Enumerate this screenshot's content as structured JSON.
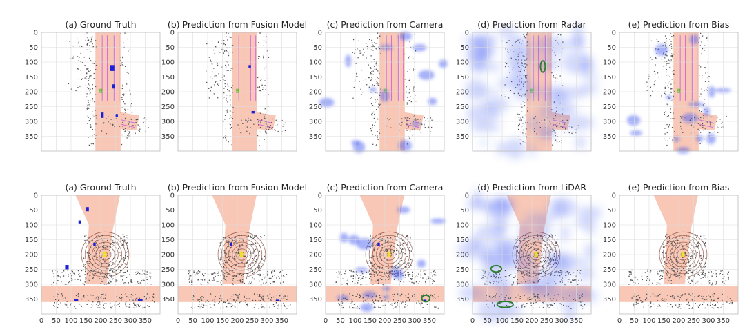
{
  "figure": {
    "rows": [
      {
        "panels": [
          {
            "title": "(a) Ground Truth",
            "overlay": "none"
          },
          {
            "title": "(b) Prediction from Fusion Model",
            "overlay": "none"
          },
          {
            "title": "(c) Prediction from Camera",
            "overlay": "light"
          },
          {
            "title": "(d) Prediction from Radar",
            "overlay": "heavy"
          },
          {
            "title": "(e) Prediction from Bias",
            "overlay": "light"
          }
        ]
      },
      {
        "panels": [
          {
            "title": "(a) Ground Truth",
            "overlay": "none"
          },
          {
            "title": "(b) Prediction from Fusion Model",
            "overlay": "none"
          },
          {
            "title": "(c) Prediction from Camera",
            "overlay": "light"
          },
          {
            "title": "(d) Prediction from LiDAR",
            "overlay": "heavy"
          },
          {
            "title": "(e) Prediction from Bias",
            "overlay": "none"
          }
        ]
      }
    ],
    "axis": {
      "range": [
        0,
        400
      ],
      "ticks": [
        "0",
        "50",
        "100",
        "150",
        "200",
        "250",
        "300",
        "350"
      ],
      "y_inverted": true
    },
    "colors": {
      "drivable_area": "#f8c7b6",
      "lane_line": "#d36fd6",
      "vehicle": "#1f1fd6",
      "pedestrian_box": "#5fb82a",
      "lidar_points": "#555555",
      "prediction_heat": "#3b55f0",
      "highlight_ellipse": "#2e7d32"
    }
  }
}
